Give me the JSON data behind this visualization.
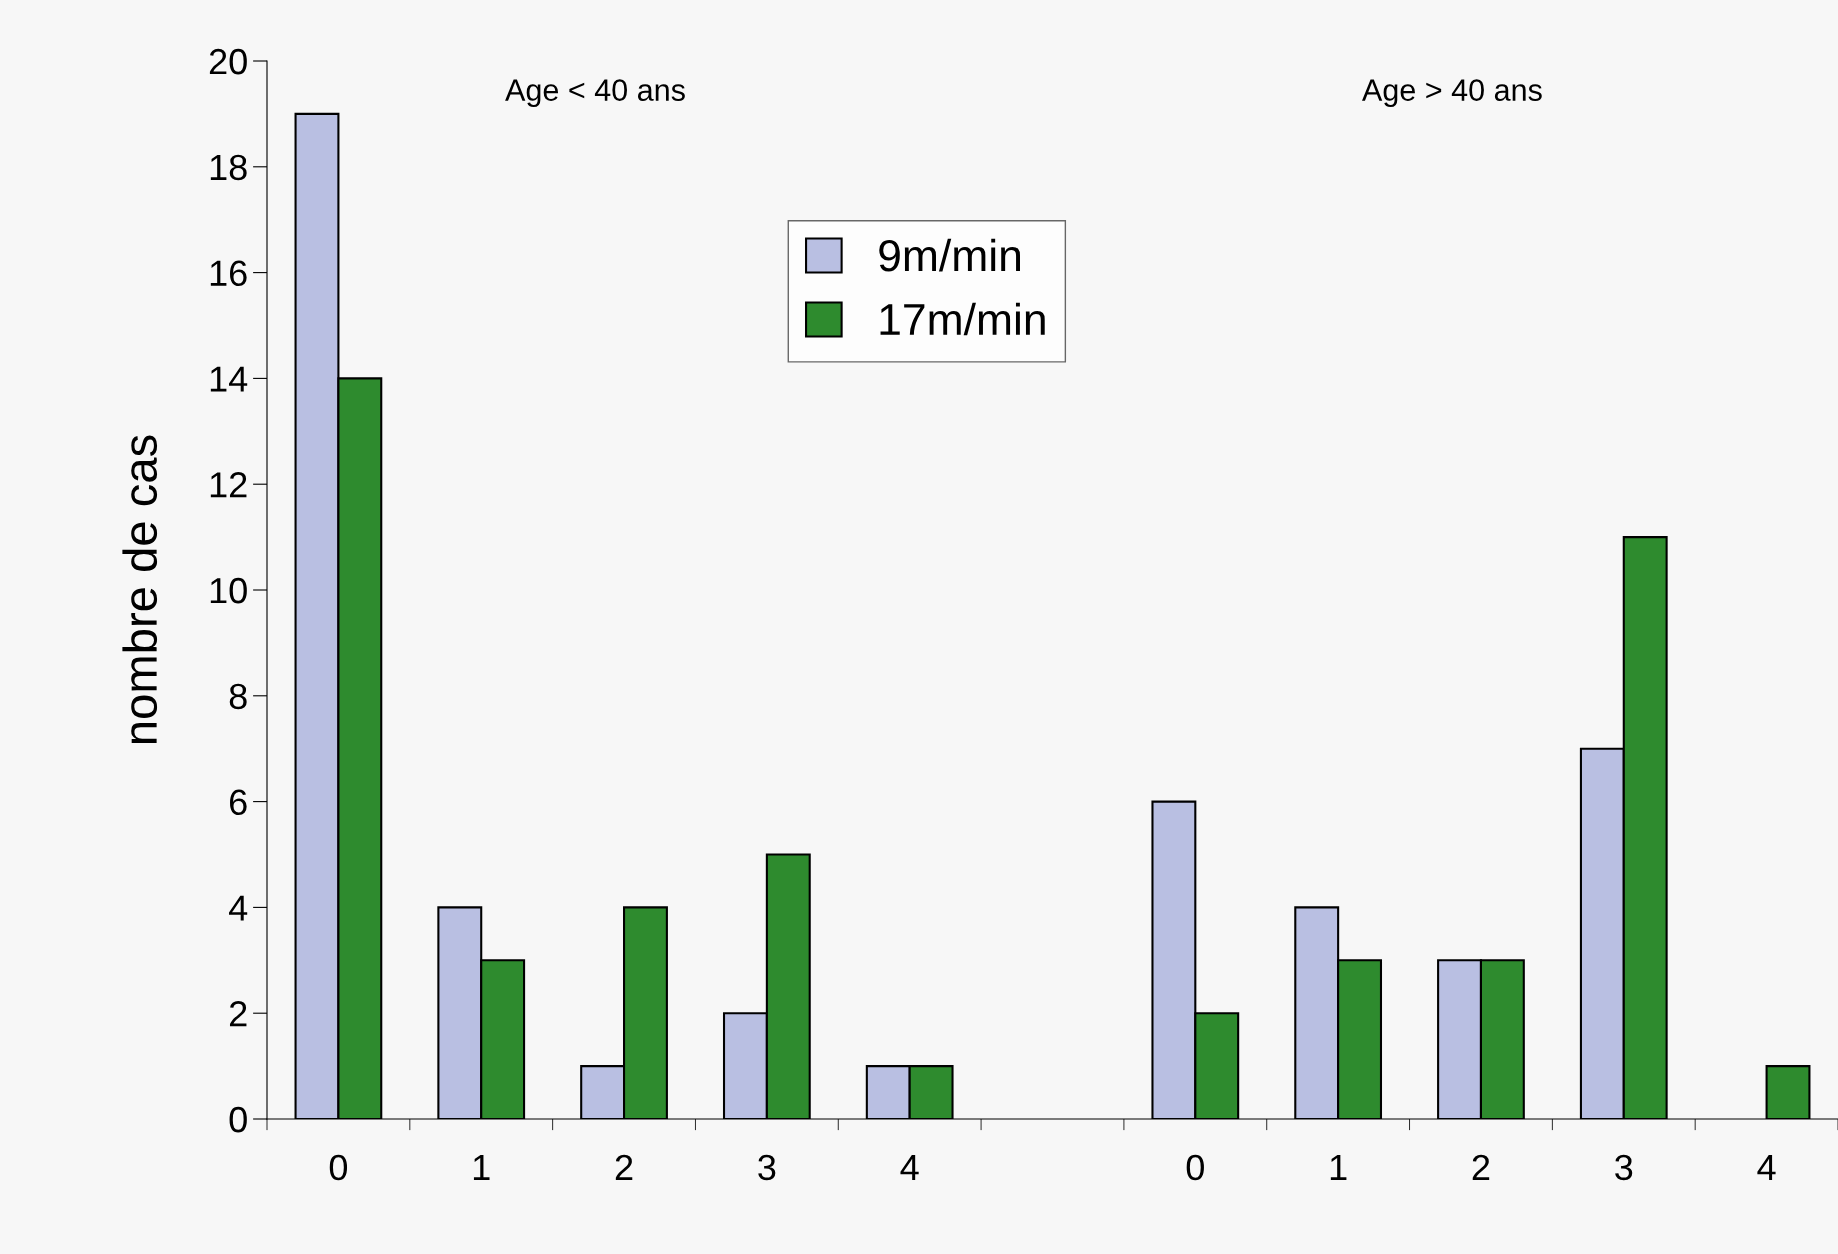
{
  "chart_data": {
    "type": "bar",
    "ylabel": "nombre de cas",
    "categories": [
      "0",
      "1",
      "2",
      "3",
      "4",
      null,
      "0",
      "1",
      "2",
      "3",
      "4"
    ],
    "series": [
      {
        "name": "9m/min",
        "color": "#b9bfe2",
        "values": [
          19,
          4,
          1,
          2,
          1,
          null,
          6,
          4,
          3,
          7,
          null
        ]
      },
      {
        "name": "17m/min",
        "color": "#2e8b2e",
        "values": [
          14,
          3,
          4,
          5,
          1,
          null,
          2,
          3,
          3,
          11,
          1
        ]
      }
    ],
    "ylim": [
      0,
      20
    ],
    "yticks": [
      0,
      2,
      4,
      6,
      8,
      10,
      12,
      14,
      16,
      18,
      20
    ],
    "legend": "top",
    "grid": false,
    "annotations": [
      "Age < 40 ans",
      "Age > 40 ans"
    ]
  }
}
